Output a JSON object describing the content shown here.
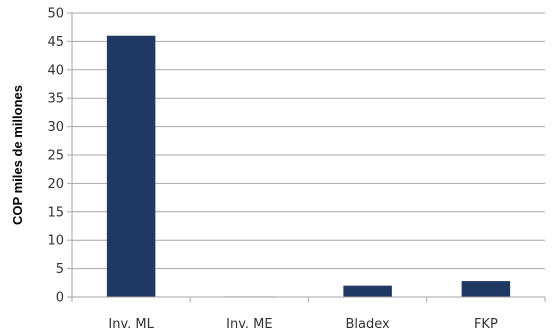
{
  "chart_data": {
    "type": "bar",
    "title": "",
    "xlabel": "",
    "ylabel": "COP miles de millones",
    "categories": [
      "Inv. ML",
      "Inv. ME",
      "Bladex",
      "FKP"
    ],
    "values": [
      46,
      0.1,
      2,
      2.8
    ],
    "ylim": [
      0,
      50
    ],
    "yticks": [
      0,
      5,
      10,
      15,
      20,
      25,
      30,
      35,
      40,
      45,
      50
    ],
    "grid": true,
    "legend": "none",
    "bar_color": "#1F3864",
    "grid_color": "#A6A6A6"
  }
}
